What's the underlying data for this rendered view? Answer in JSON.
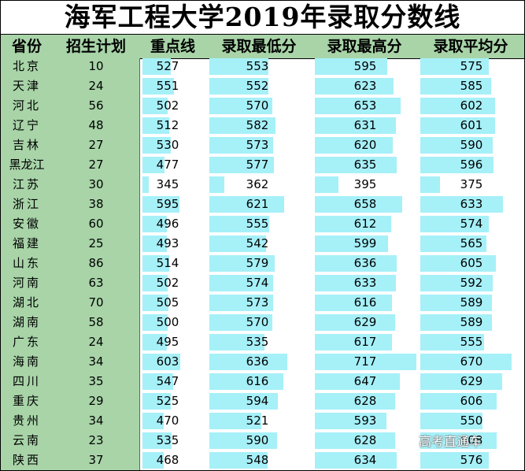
{
  "title": "海军工程大学2019年录取分数线",
  "headers": [
    "省份",
    "招生计划",
    "重点线",
    "录取最低分",
    "录取最高分",
    "录取平均分"
  ],
  "bar_color": "#a6f0f8",
  "side_color": "#a8d4a8",
  "watermark": "高考直通车",
  "rows": [
    {
      "province": "北京",
      "plan": "10",
      "key": "527",
      "min": "553",
      "max": "595",
      "avg": "575"
    },
    {
      "province": "天津",
      "plan": "24",
      "key": "551",
      "min": "552",
      "max": "623",
      "avg": "585"
    },
    {
      "province": "河北",
      "plan": "56",
      "key": "502",
      "min": "570",
      "max": "653",
      "avg": "602"
    },
    {
      "province": "辽宁",
      "plan": "48",
      "key": "512",
      "min": "582",
      "max": "631",
      "avg": "601"
    },
    {
      "province": "吉林",
      "plan": "27",
      "key": "530",
      "min": "573",
      "max": "620",
      "avg": "590"
    },
    {
      "province": "黑龙江",
      "plan": "27",
      "key": "477",
      "min": "577",
      "max": "635",
      "avg": "596"
    },
    {
      "province": "江苏",
      "plan": "30",
      "key": "345",
      "min": "362",
      "max": "395",
      "avg": "375"
    },
    {
      "province": "浙江",
      "plan": "38",
      "key": "595",
      "min": "621",
      "max": "658",
      "avg": "633"
    },
    {
      "province": "安徽",
      "plan": "60",
      "key": "496",
      "min": "555",
      "max": "612",
      "avg": "574"
    },
    {
      "province": "福建",
      "plan": "25",
      "key": "493",
      "min": "542",
      "max": "599",
      "avg": "565"
    },
    {
      "province": "山东",
      "plan": "86",
      "key": "514",
      "min": "579",
      "max": "636",
      "avg": "605"
    },
    {
      "province": "河南",
      "plan": "63",
      "key": "502",
      "min": "574",
      "max": "633",
      "avg": "592"
    },
    {
      "province": "湖北",
      "plan": "70",
      "key": "505",
      "min": "573",
      "max": "616",
      "avg": "589"
    },
    {
      "province": "湖南",
      "plan": "58",
      "key": "500",
      "min": "570",
      "max": "629",
      "avg": "589"
    },
    {
      "province": "广东",
      "plan": "24",
      "key": "495",
      "min": "535",
      "max": "617",
      "avg": "555"
    },
    {
      "province": "海南",
      "plan": "34",
      "key": "603",
      "min": "636",
      "max": "717",
      "avg": "670"
    },
    {
      "province": "四川",
      "plan": "35",
      "key": "547",
      "min": "616",
      "max": "647",
      "avg": "629"
    },
    {
      "province": "重庆",
      "plan": "29",
      "key": "525",
      "min": "594",
      "max": "628",
      "avg": "606"
    },
    {
      "province": "贵州",
      "plan": "34",
      "key": "470",
      "min": "521",
      "max": "593",
      "avg": "550"
    },
    {
      "province": "云南",
      "plan": "23",
      "key": "535",
      "min": "590",
      "max": "628",
      "avg": "608"
    },
    {
      "province": "陕西",
      "plan": "37",
      "key": "468",
      "min": "548",
      "max": "634",
      "avg": "576"
    }
  ]
}
